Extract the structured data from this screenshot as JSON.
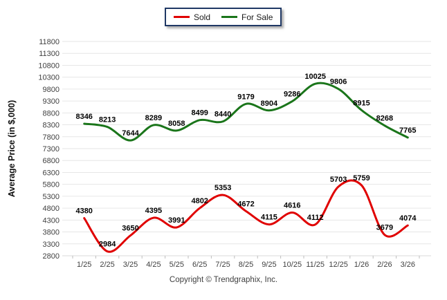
{
  "legend": {
    "items": [
      {
        "label": "Sold",
        "color": "#E00000"
      },
      {
        "label": "For Sale",
        "color": "#1A751A"
      }
    ]
  },
  "footer": {
    "copyright": "Copyright © Trendgraphix, Inc."
  },
  "axis_style": {
    "grid_color": "#E6E6E6",
    "axis_line_color": "#D8D8D8",
    "tick_color": "#BDBDBD",
    "tick_label_color": "#404040",
    "data_label_color": "#000000"
  },
  "chart_data": {
    "type": "line",
    "ylabel": "Average Price (in $,000)",
    "categories": [
      "1/25",
      "2/25",
      "3/25",
      "4/25",
      "5/25",
      "6/25",
      "7/25",
      "8/25",
      "9/25",
      "10/25",
      "11/25",
      "12/25",
      "1/26",
      "2/26",
      "3/26"
    ],
    "series": [
      {
        "name": "Sold",
        "color": "#E00000",
        "values": [
          4380,
          2984,
          3650,
          4395,
          3991,
          4802,
          5353,
          4672,
          4115,
          4616,
          4112,
          5703,
          5759,
          3679,
          4074
        ]
      },
      {
        "name": "For Sale",
        "color": "#1A751A",
        "values": [
          8346,
          8213,
          7644,
          8289,
          8058,
          8499,
          8440,
          9179,
          8904,
          9286,
          10025,
          9806,
          8915,
          8268,
          7765
        ]
      }
    ],
    "ylim": [
      2800,
      11800
    ],
    "ytick_step": 500,
    "grid": true,
    "legend_position": "top-center",
    "line_style": "smooth",
    "data_labels": true
  }
}
